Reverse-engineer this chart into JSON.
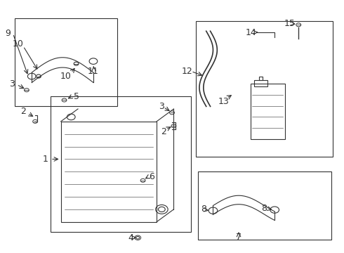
{
  "title": "",
  "bg_color": "#ffffff",
  "fig_width": 4.9,
  "fig_height": 3.6,
  "dpi": 100,
  "line_color": "#333333",
  "line_width": 0.8
}
